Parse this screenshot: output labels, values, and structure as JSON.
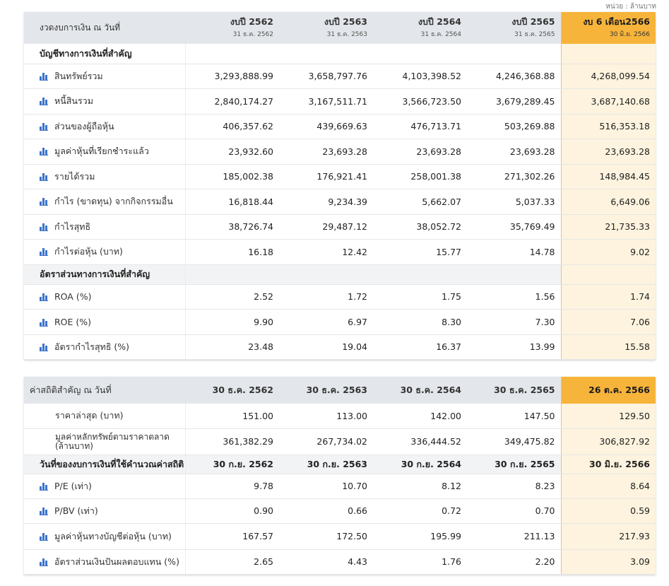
{
  "unit_label": "หน่วย : ล้านบาท",
  "accent_color": "#f7b43a",
  "icon_color": "#3b74cc",
  "financial": {
    "header_label": "งวดงบการเงิน ณ วันที่",
    "columns": [
      {
        "title": "งบปี 2562",
        "date": "31 ธ.ค. 2562"
      },
      {
        "title": "งบปี 2563",
        "date": "31 ธ.ค. 2563"
      },
      {
        "title": "งบปี 2564",
        "date": "31 ธ.ค. 2564"
      },
      {
        "title": "งบปี 2565",
        "date": "31 ธ.ค. 2565"
      },
      {
        "title": "งบ 6 เดือน2566",
        "date": "30 มิ.ย. 2566"
      }
    ],
    "section1_title": "บัญชีทางการเงินที่สำคัญ",
    "section1_rows": [
      {
        "label": "สินทรัพย์รวม",
        "values": [
          "3,293,888.99",
          "3,658,797.76",
          "4,103,398.52",
          "4,246,368.88",
          "4,268,099.54"
        ]
      },
      {
        "label": "หนี้สินรวม",
        "values": [
          "2,840,174.27",
          "3,167,511.71",
          "3,566,723.50",
          "3,679,289.45",
          "3,687,140.68"
        ]
      },
      {
        "label": "ส่วนของผู้ถือหุ้น",
        "values": [
          "406,357.62",
          "439,669.63",
          "476,713.71",
          "503,269.88",
          "516,353.18"
        ]
      },
      {
        "label": "มูลค่าหุ้นที่เรียกชำระแล้ว",
        "values": [
          "23,932.60",
          "23,693.28",
          "23,693.28",
          "23,693.28",
          "23,693.28"
        ]
      },
      {
        "label": "รายได้รวม",
        "values": [
          "185,002.38",
          "176,921.41",
          "258,001.38",
          "271,302.26",
          "148,984.45"
        ]
      },
      {
        "label": "กำไร (ขาดทุน) จากกิจกรรมอื่น",
        "values": [
          "16,818.44",
          "9,234.39",
          "5,662.07",
          "5,037.33",
          "6,649.06"
        ]
      },
      {
        "label": "กำไรสุทธิ",
        "values": [
          "38,726.74",
          "29,487.12",
          "38,052.72",
          "35,769.49",
          "21,735.33"
        ]
      },
      {
        "label": "กำไรต่อหุ้น (บาท)",
        "values": [
          "16.18",
          "12.42",
          "15.77",
          "14.78",
          "9.02"
        ]
      }
    ],
    "section2_title": "อัตราส่วนทางการเงินที่สำคัญ",
    "section2_rows": [
      {
        "label": "ROA (%)",
        "values": [
          "2.52",
          "1.72",
          "1.75",
          "1.56",
          "1.74"
        ]
      },
      {
        "label": "ROE (%)",
        "values": [
          "9.90",
          "6.97",
          "8.30",
          "7.30",
          "7.06"
        ]
      },
      {
        "label": "อัตรากำไรสุทธิ (%)",
        "values": [
          "23.48",
          "19.04",
          "16.37",
          "13.99",
          "15.58"
        ]
      }
    ]
  },
  "statistics": {
    "header_label": "ค่าสถิติสำคัญ ณ วันที่",
    "columns": [
      "30 ธ.ค. 2562",
      "30 ธ.ค. 2563",
      "30 ธ.ค. 2564",
      "30 ธ.ค. 2565",
      "26 ต.ค. 2566"
    ],
    "price_rows": [
      {
        "label": "ราคาล่าสุด (บาท)",
        "values": [
          "151.00",
          "113.00",
          "142.00",
          "147.50",
          "129.50"
        ]
      },
      {
        "label": "มูลค่าหลักทรัพย์ตามราคาตลาด (ล้านบาท)",
        "values": [
          "361,382.29",
          "267,734.02",
          "336,444.52",
          "349,475.82",
          "306,827.92"
        ]
      }
    ],
    "calc_section": {
      "label": "วันที่ของงบการเงินที่ใช้คำนวณค่าสถิติ",
      "dates": [
        "30 ก.ย. 2562",
        "30 ก.ย. 2563",
        "30 ก.ย. 2564",
        "30 ก.ย. 2565",
        "30 มิ.ย. 2566"
      ]
    },
    "ratio_rows": [
      {
        "label": "P/E (เท่า)",
        "values": [
          "9.78",
          "10.70",
          "8.12",
          "8.23",
          "8.64"
        ]
      },
      {
        "label": "P/BV (เท่า)",
        "values": [
          "0.90",
          "0.66",
          "0.72",
          "0.70",
          "0.59"
        ]
      },
      {
        "label": "มูลค่าหุ้นทางบัญชีต่อหุ้น (บาท)",
        "values": [
          "167.57",
          "172.50",
          "195.99",
          "211.13",
          "217.93"
        ]
      },
      {
        "label": "อัตราส่วนเงินปันผลตอบแทน (%)",
        "values": [
          "2.65",
          "4.43",
          "1.76",
          "2.20",
          "3.09"
        ]
      }
    ]
  }
}
